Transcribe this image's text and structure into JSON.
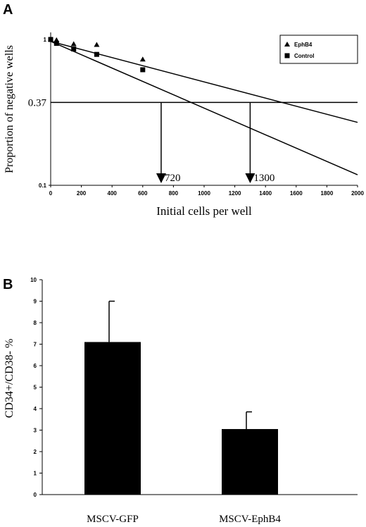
{
  "chart_data": [
    {
      "type": "scatter",
      "panel_label": "A",
      "xlabel": "Initial cells per well",
      "ylabel": "Proportion of negative wells",
      "xlim": [
        0,
        2000
      ],
      "ylim": [
        0.1,
        1
      ],
      "y_scale": "log",
      "x_ticks": [
        "0",
        "200",
        "400",
        "600",
        "800",
        "1000",
        "1200",
        "1400",
        "1600",
        "1800",
        "2000"
      ],
      "y_ticks": [
        "0.1",
        "1"
      ],
      "legend_position": "top-right",
      "reference_line": {
        "y": 0.37,
        "label": "0.37"
      },
      "series": [
        {
          "name": "EphB4",
          "marker": "triangle",
          "x": [
            0,
            38,
            150,
            300,
            600
          ],
          "y": [
            1.0,
            0.99,
            0.93,
            0.92,
            0.73
          ],
          "fit_line": {
            "x": [
              0,
              2000
            ],
            "y": [
              0.97,
              0.27
            ]
          }
        },
        {
          "name": "Control",
          "marker": "square",
          "x": [
            0,
            38,
            150,
            300,
            600
          ],
          "y": [
            1.0,
            0.94,
            0.86,
            0.79,
            0.62
          ],
          "fit_line": {
            "x": [
              0,
              2000
            ],
            "y": [
              0.97,
              0.118
            ]
          }
        }
      ],
      "annotations": [
        {
          "x": 720,
          "label": "720"
        },
        {
          "x": 1300,
          "label": "1300"
        }
      ]
    },
    {
      "type": "bar",
      "panel_label": "B",
      "categories": [
        "MSCV-GFP",
        "MSCV-EphB4"
      ],
      "values": [
        7.1,
        3.05
      ],
      "errors": [
        1.9,
        0.8
      ],
      "xlabel": "",
      "ylabel": "CD34+/CD38-  %",
      "ylim": [
        0,
        10
      ],
      "y_ticks": [
        "0",
        "1",
        "2",
        "3",
        "4",
        "5",
        "6",
        "7",
        "8",
        "9",
        "10"
      ],
      "bar_color": "#000000"
    }
  ]
}
